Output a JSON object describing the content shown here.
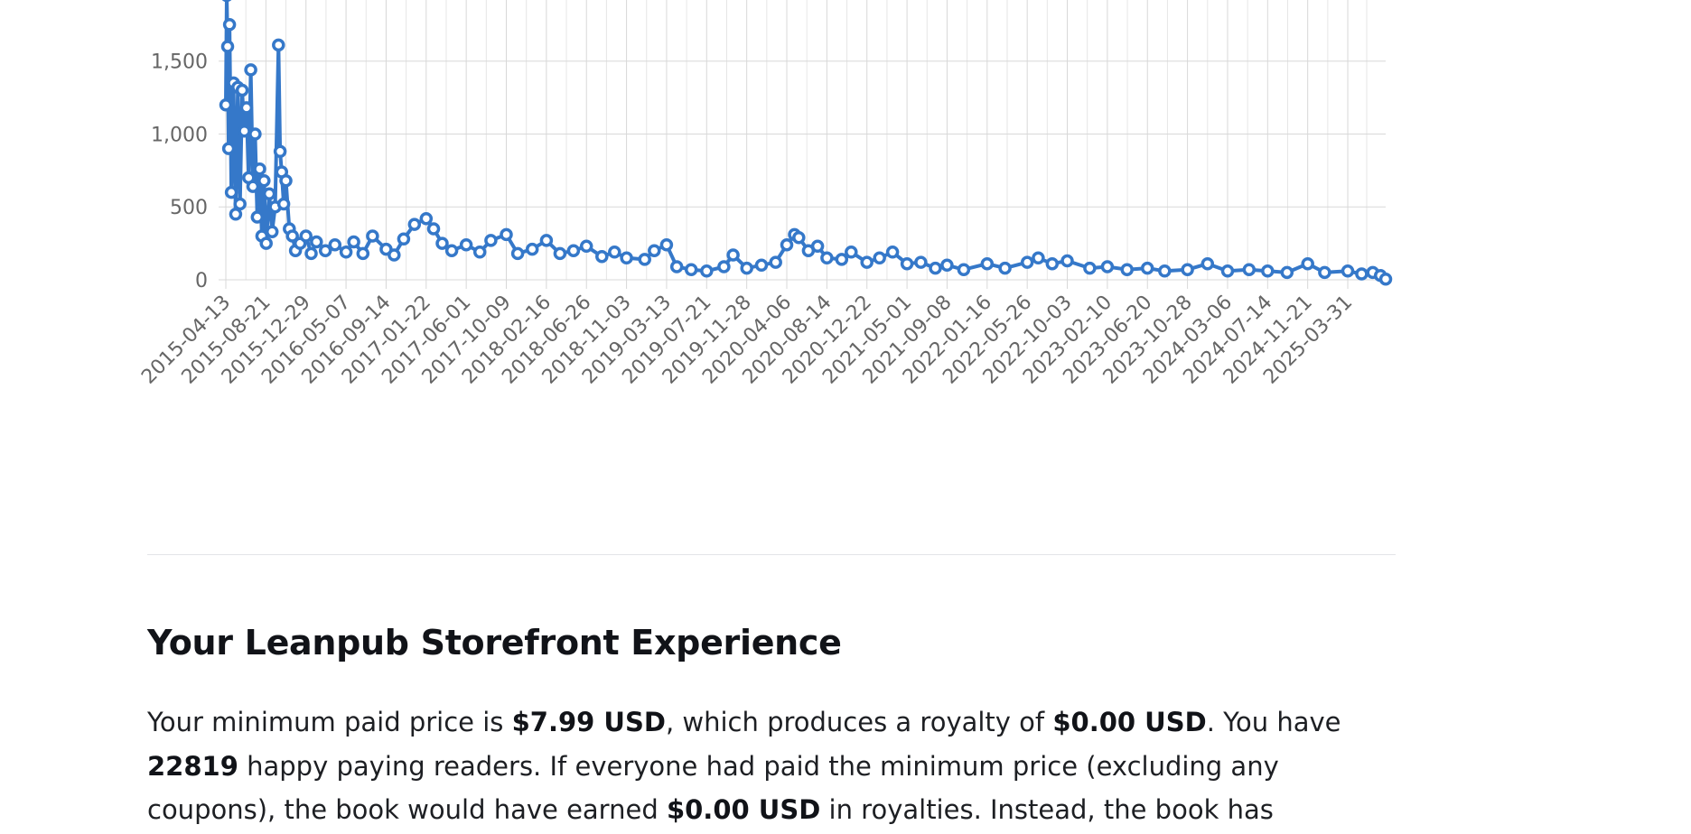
{
  "chart_data": {
    "type": "line",
    "title": "",
    "xlabel": "",
    "ylabel": "",
    "ylim": [
      0,
      1950
    ],
    "y_ticks": [
      0,
      500,
      1000,
      1500
    ],
    "y_tick_labels": [
      "0",
      "500",
      "1,000",
      "1,500"
    ],
    "x_range": [
      "2015-04-13",
      "2025-08-01"
    ],
    "x_tick_labels": [
      "2015-04-13",
      "2015-08-21",
      "2015-12-29",
      "2016-05-07",
      "2016-09-14",
      "2017-01-22",
      "2017-06-01",
      "2017-10-09",
      "2018-02-16",
      "2018-06-26",
      "2018-11-03",
      "2019-03-13",
      "2019-07-21",
      "2019-11-28",
      "2020-04-06",
      "2020-08-14",
      "2020-12-22",
      "2021-05-01",
      "2021-09-08",
      "2022-01-16",
      "2022-05-26",
      "2022-10-03",
      "2023-02-10",
      "2023-06-20",
      "2023-10-28",
      "2024-03-06",
      "2024-07-14",
      "2024-11-21",
      "2025-03-31"
    ],
    "grid": true,
    "legend": "none",
    "series_color": "#3578c9",
    "series": [
      {
        "points": [
          [
            "2015-04-13",
            1200
          ],
          [
            "2015-04-16",
            1950
          ],
          [
            "2015-04-19",
            1600
          ],
          [
            "2015-04-22",
            900
          ],
          [
            "2015-04-25",
            1750
          ],
          [
            "2015-05-01",
            600
          ],
          [
            "2015-05-08",
            1350
          ],
          [
            "2015-05-15",
            450
          ],
          [
            "2015-05-22",
            1320
          ],
          [
            "2015-05-29",
            520
          ],
          [
            "2015-06-05",
            1300
          ],
          [
            "2015-06-12",
            1020
          ],
          [
            "2015-06-19",
            1180
          ],
          [
            "2015-06-26",
            700
          ],
          [
            "2015-07-03",
            1440
          ],
          [
            "2015-07-10",
            640
          ],
          [
            "2015-07-17",
            1000
          ],
          [
            "2015-07-24",
            430
          ],
          [
            "2015-08-01",
            760
          ],
          [
            "2015-08-08",
            300
          ],
          [
            "2015-08-15",
            680
          ],
          [
            "2015-08-22",
            250
          ],
          [
            "2015-09-01",
            590
          ],
          [
            "2015-09-10",
            330
          ],
          [
            "2015-09-20",
            500
          ],
          [
            "2015-10-01",
            1610
          ],
          [
            "2015-10-06",
            880
          ],
          [
            "2015-10-11",
            740
          ],
          [
            "2015-10-18",
            520
          ],
          [
            "2015-10-25",
            680
          ],
          [
            "2015-11-05",
            350
          ],
          [
            "2015-11-15",
            300
          ],
          [
            "2015-11-25",
            200
          ],
          [
            "2015-12-10",
            250
          ],
          [
            "2015-12-29",
            300
          ],
          [
            "2016-01-15",
            180
          ],
          [
            "2016-02-01",
            260
          ],
          [
            "2016-03-01",
            200
          ],
          [
            "2016-04-01",
            240
          ],
          [
            "2016-05-07",
            190
          ],
          [
            "2016-06-01",
            260
          ],
          [
            "2016-07-01",
            180
          ],
          [
            "2016-08-01",
            300
          ],
          [
            "2016-09-14",
            210
          ],
          [
            "2016-10-10",
            170
          ],
          [
            "2016-11-10",
            280
          ],
          [
            "2016-12-15",
            380
          ],
          [
            "2017-01-22",
            420
          ],
          [
            "2017-02-15",
            350
          ],
          [
            "2017-03-15",
            250
          ],
          [
            "2017-04-15",
            200
          ],
          [
            "2017-06-01",
            240
          ],
          [
            "2017-07-15",
            190
          ],
          [
            "2017-08-20",
            270
          ],
          [
            "2017-10-09",
            310
          ],
          [
            "2017-11-15",
            180
          ],
          [
            "2018-01-01",
            210
          ],
          [
            "2018-02-16",
            270
          ],
          [
            "2018-04-01",
            180
          ],
          [
            "2018-05-15",
            200
          ],
          [
            "2018-06-26",
            230
          ],
          [
            "2018-08-15",
            160
          ],
          [
            "2018-09-25",
            190
          ],
          [
            "2018-11-03",
            150
          ],
          [
            "2019-01-01",
            140
          ],
          [
            "2019-02-01",
            200
          ],
          [
            "2019-03-13",
            240
          ],
          [
            "2019-04-15",
            90
          ],
          [
            "2019-06-01",
            70
          ],
          [
            "2019-07-21",
            60
          ],
          [
            "2019-09-15",
            90
          ],
          [
            "2019-10-15",
            170
          ],
          [
            "2019-11-28",
            80
          ],
          [
            "2020-01-15",
            100
          ],
          [
            "2020-03-01",
            120
          ],
          [
            "2020-04-06",
            240
          ],
          [
            "2020-05-01",
            310
          ],
          [
            "2020-05-15",
            290
          ],
          [
            "2020-06-15",
            200
          ],
          [
            "2020-07-15",
            230
          ],
          [
            "2020-08-14",
            150
          ],
          [
            "2020-10-01",
            140
          ],
          [
            "2020-11-01",
            190
          ],
          [
            "2020-12-22",
            120
          ],
          [
            "2021-02-01",
            150
          ],
          [
            "2021-03-15",
            190
          ],
          [
            "2021-05-01",
            110
          ],
          [
            "2021-06-15",
            120
          ],
          [
            "2021-08-01",
            80
          ],
          [
            "2021-09-08",
            100
          ],
          [
            "2021-11-01",
            70
          ],
          [
            "2022-01-16",
            110
          ],
          [
            "2022-03-15",
            80
          ],
          [
            "2022-05-26",
            120
          ],
          [
            "2022-07-01",
            150
          ],
          [
            "2022-08-15",
            110
          ],
          [
            "2022-10-03",
            130
          ],
          [
            "2022-12-15",
            80
          ],
          [
            "2023-02-10",
            90
          ],
          [
            "2023-04-15",
            70
          ],
          [
            "2023-06-20",
            80
          ],
          [
            "2023-08-15",
            60
          ],
          [
            "2023-10-28",
            70
          ],
          [
            "2024-01-01",
            110
          ],
          [
            "2024-03-06",
            60
          ],
          [
            "2024-05-15",
            70
          ],
          [
            "2024-07-14",
            60
          ],
          [
            "2024-09-15",
            50
          ],
          [
            "2024-11-21",
            110
          ],
          [
            "2025-01-15",
            50
          ],
          [
            "2025-03-31",
            60
          ],
          [
            "2025-05-15",
            40
          ],
          [
            "2025-06-20",
            50
          ],
          [
            "2025-07-15",
            30
          ],
          [
            "2025-08-01",
            5
          ]
        ]
      }
    ]
  },
  "section": {
    "title": "Your Leanpub Storefront Experience",
    "p1": "Your minimum paid price is ",
    "min_price": "$7.99 USD",
    "p2": ", which produces a royalty of ",
    "royalty": "$0.00 USD",
    "p3": ". You have ",
    "readers": "22819",
    "p4": " happy paying readers. If everyone had paid the minimum price (excluding any coupons), the book would have earned ",
    "earned": "$0.00 USD",
    "p5": " in royalties. Instead, the book has"
  }
}
